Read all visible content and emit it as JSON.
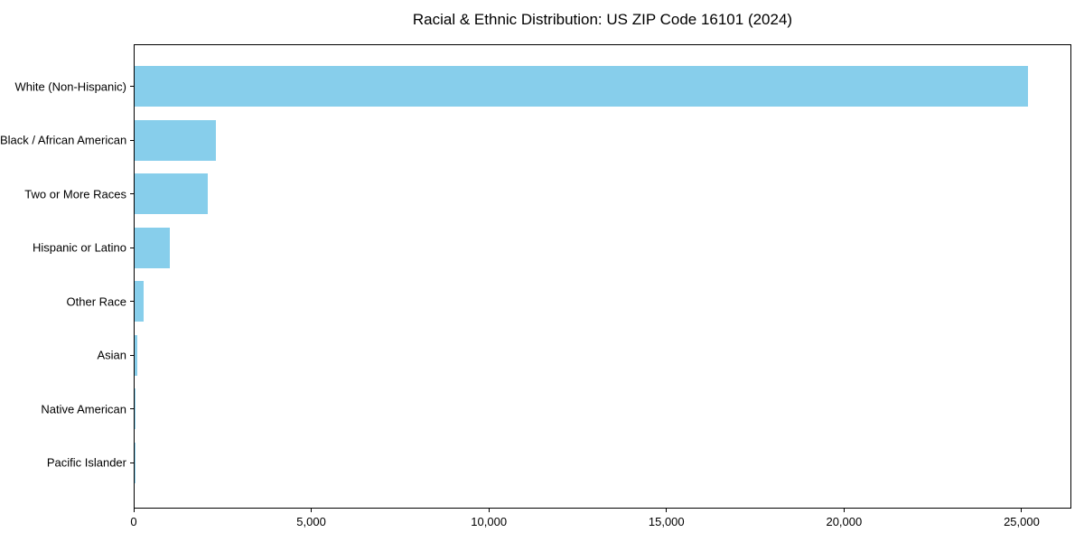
{
  "title": "Racial & Ethnic Distribution: US ZIP Code 16101 (2024)",
  "chart_data": {
    "type": "bar",
    "orientation": "horizontal",
    "title": "Racial & Ethnic Distribution: US ZIP Code 16101 (2024)",
    "xlabel": "",
    "ylabel": "",
    "categories": [
      "White (Non-Hispanic)",
      "Black / African American",
      "Two or More Races",
      "Hispanic or Latino",
      "Other Race",
      "Asian",
      "Native American",
      "Pacific Islander"
    ],
    "values": [
      25150,
      2280,
      2060,
      1000,
      255,
      70,
      20,
      5
    ],
    "xlim": [
      0,
      26400
    ],
    "xticks": [
      0,
      5000,
      10000,
      15000,
      20000,
      25000
    ],
    "xtick_labels": [
      "0",
      "5,000",
      "10,000",
      "15,000",
      "20,000",
      "25,000"
    ],
    "bar_color": "#87CEEB",
    "axis_color": "#000000",
    "grid": false,
    "legend": null
  }
}
